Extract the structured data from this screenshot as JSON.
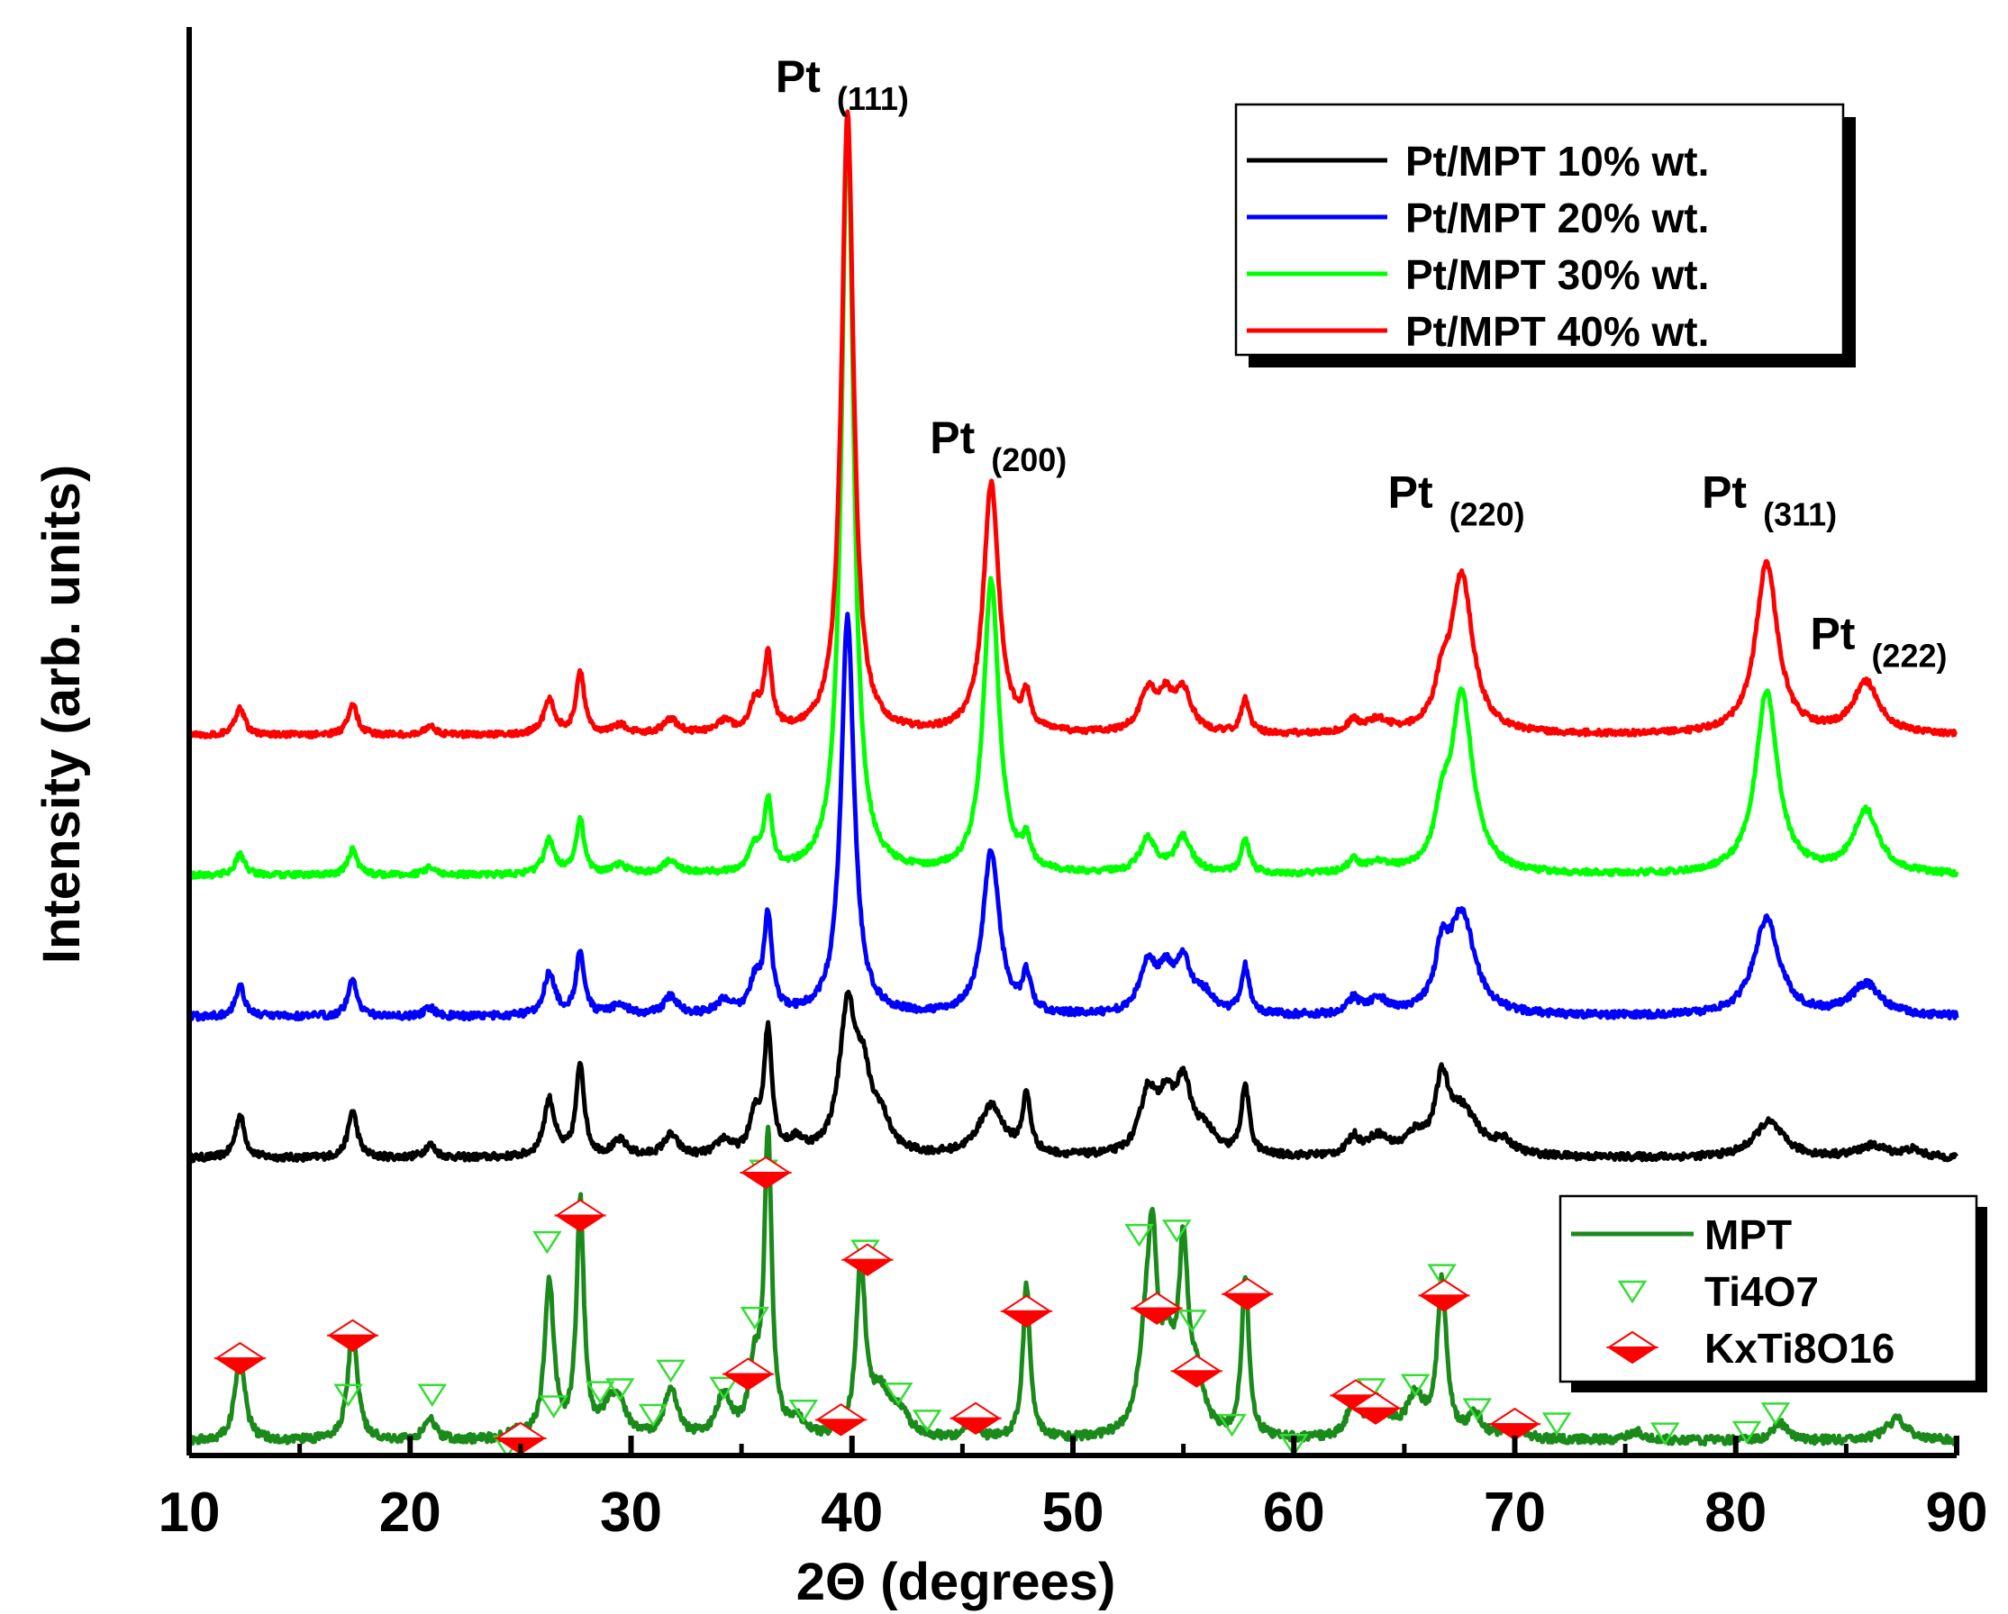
{
  "chart_data": {
    "type": "line",
    "title": "",
    "xlabel": "2Θ (degrees)",
    "ylabel": "Intensity (arb. units)",
    "xlim": [
      10,
      90
    ],
    "ylim": [
      0,
      100
    ],
    "x_ticks": [
      10,
      20,
      30,
      40,
      50,
      60,
      70,
      80,
      90
    ],
    "y_ticks_shown": false,
    "series": [
      {
        "name": "Pt/MPT 10% wt.",
        "color": "#000000",
        "baseline": 20.8,
        "noise": 0.25,
        "peaks": [
          [
            12.3,
            3.0,
            0.25
          ],
          [
            17.4,
            3.3,
            0.25
          ],
          [
            20.9,
            0.9,
            0.3
          ],
          [
            26.3,
            4.0,
            0.3
          ],
          [
            27.7,
            6.5,
            0.22
          ],
          [
            29.5,
            1.1,
            0.4
          ],
          [
            31.8,
            1.5,
            0.4
          ],
          [
            34.2,
            1.1,
            0.4
          ],
          [
            35.6,
            2.5,
            0.3
          ],
          [
            36.2,
            8.5,
            0.22
          ],
          [
            37.5,
            0.9,
            0.4
          ],
          [
            39.8,
            10.0,
            0.45
          ],
          [
            40.5,
            4.5,
            0.4
          ],
          [
            41.3,
            2.2,
            0.5
          ],
          [
            46.3,
            3.5,
            0.7
          ],
          [
            47.9,
            4.0,
            0.22
          ],
          [
            53.4,
            4.2,
            0.45
          ],
          [
            54.2,
            3.2,
            0.4
          ],
          [
            55.0,
            4.8,
            0.45
          ],
          [
            56.0,
            1.5,
            0.5
          ],
          [
            57.8,
            4.8,
            0.22
          ],
          [
            62.7,
            1.2,
            0.3
          ],
          [
            63.8,
            1.3,
            0.6
          ],
          [
            65.5,
            1.2,
            0.5
          ],
          [
            66.7,
            4.5,
            0.35
          ],
          [
            67.6,
            3.2,
            0.9
          ],
          [
            69.5,
            0.8,
            0.5
          ],
          [
            81.5,
            2.5,
            0.8
          ],
          [
            86.2,
            0.8,
            0.8
          ],
          [
            88.0,
            0.5,
            0.5
          ]
        ]
      },
      {
        "name": "Pt/MPT 20% wt.",
        "color": "#0000ff",
        "baseline": 30.7,
        "noise": 0.25,
        "peaks": [
          [
            12.3,
            2.2,
            0.25
          ],
          [
            17.4,
            2.6,
            0.25
          ],
          [
            20.9,
            0.6,
            0.3
          ],
          [
            26.3,
            3.0,
            0.3
          ],
          [
            27.7,
            4.6,
            0.22
          ],
          [
            29.5,
            0.8,
            0.4
          ],
          [
            31.8,
            1.3,
            0.4
          ],
          [
            34.2,
            1.0,
            0.4
          ],
          [
            35.6,
            2.2,
            0.3
          ],
          [
            36.2,
            6.8,
            0.22
          ],
          [
            39.8,
            28.0,
            0.35
          ],
          [
            46.3,
            11.5,
            0.45
          ],
          [
            47.9,
            2.5,
            0.22
          ],
          [
            53.4,
            3.4,
            0.45
          ],
          [
            54.2,
            2.4,
            0.4
          ],
          [
            55.0,
            3.4,
            0.45
          ],
          [
            56.0,
            1.2,
            0.5
          ],
          [
            57.8,
            3.3,
            0.22
          ],
          [
            62.7,
            1.0,
            0.3
          ],
          [
            63.8,
            1.0,
            0.6
          ],
          [
            66.7,
            3.5,
            0.35
          ],
          [
            67.6,
            7.0,
            0.7
          ],
          [
            81.4,
            6.8,
            0.7
          ],
          [
            85.9,
            2.2,
            0.8
          ]
        ]
      },
      {
        "name": "Pt/MPT 30% wt.",
        "color": "#00ff00",
        "baseline": 40.6,
        "noise": 0.2,
        "peaks": [
          [
            12.3,
            1.5,
            0.25
          ],
          [
            17.4,
            1.8,
            0.25
          ],
          [
            20.9,
            0.5,
            0.3
          ],
          [
            26.3,
            2.4,
            0.3
          ],
          [
            27.7,
            3.8,
            0.22
          ],
          [
            29.5,
            0.6,
            0.4
          ],
          [
            31.8,
            1.0,
            0.4
          ],
          [
            35.6,
            1.6,
            0.3
          ],
          [
            36.2,
            4.8,
            0.22
          ],
          [
            39.8,
            53.0,
            0.33
          ],
          [
            46.3,
            20.5,
            0.42
          ],
          [
            47.9,
            1.8,
            0.22
          ],
          [
            53.4,
            2.4,
            0.45
          ],
          [
            55.0,
            2.5,
            0.45
          ],
          [
            57.8,
            2.4,
            0.22
          ],
          [
            62.7,
            0.8,
            0.3
          ],
          [
            63.8,
            0.7,
            0.6
          ],
          [
            66.7,
            3.0,
            0.35
          ],
          [
            67.6,
            12.5,
            0.6
          ],
          [
            81.4,
            12.8,
            0.6
          ],
          [
            85.9,
            4.4,
            0.7
          ]
        ]
      },
      {
        "name": "Pt/MPT 40% wt.",
        "color": "#ff0000",
        "baseline": 50.4,
        "noise": 0.2,
        "peaks": [
          [
            12.3,
            2.0,
            0.25
          ],
          [
            17.4,
            2.2,
            0.25
          ],
          [
            20.9,
            0.6,
            0.3
          ],
          [
            26.3,
            2.4,
            0.3
          ],
          [
            27.7,
            4.4,
            0.22
          ],
          [
            29.5,
            0.6,
            0.4
          ],
          [
            31.8,
            1.0,
            0.4
          ],
          [
            34.2,
            0.8,
            0.4
          ],
          [
            35.6,
            1.9,
            0.3
          ],
          [
            36.2,
            5.2,
            0.22
          ],
          [
            39.8,
            43.5,
            0.33
          ],
          [
            46.3,
            17.5,
            0.42
          ],
          [
            47.9,
            2.2,
            0.22
          ],
          [
            53.4,
            2.8,
            0.45
          ],
          [
            54.2,
            2.2,
            0.4
          ],
          [
            55.0,
            2.8,
            0.45
          ],
          [
            57.8,
            2.4,
            0.22
          ],
          [
            62.7,
            0.8,
            0.3
          ],
          [
            63.8,
            0.9,
            0.6
          ],
          [
            66.7,
            2.5,
            0.35
          ],
          [
            67.6,
            11.0,
            0.6
          ],
          [
            81.4,
            12.0,
            0.6
          ],
          [
            85.9,
            3.6,
            0.7
          ]
        ]
      },
      {
        "name": "MPT",
        "color": "#1a8a1a",
        "baseline": 1.0,
        "noise": 0.3,
        "peaks": [
          [
            12.3,
            6.5,
            0.25
          ],
          [
            17.4,
            8.0,
            0.25
          ],
          [
            20.9,
            1.5,
            0.3
          ],
          [
            24.8,
            0.4,
            0.4
          ],
          [
            26.3,
            11.0,
            0.25
          ],
          [
            27.7,
            16.5,
            0.2
          ],
          [
            29.0,
            1.8,
            0.4
          ],
          [
            29.5,
            2.0,
            0.4
          ],
          [
            31.8,
            3.5,
            0.35
          ],
          [
            34.2,
            3.0,
            0.4
          ],
          [
            35.6,
            4.5,
            0.3
          ],
          [
            36.2,
            21.0,
            0.2
          ],
          [
            37.5,
            1.2,
            0.4
          ],
          [
            40.4,
            12.0,
            0.25
          ],
          [
            41.3,
            3.0,
            0.5
          ],
          [
            42.2,
            1.5,
            0.5
          ],
          [
            45.4,
            1.2,
            0.3
          ],
          [
            47.9,
            10.8,
            0.2
          ],
          [
            53.3,
            5.5,
            0.4
          ],
          [
            53.6,
            11.0,
            0.25
          ],
          [
            54.3,
            5.0,
            0.4
          ],
          [
            55.0,
            12.0,
            0.25
          ],
          [
            55.6,
            3.5,
            0.4
          ],
          [
            57.8,
            11.2,
            0.2
          ],
          [
            62.7,
            2.6,
            0.3
          ],
          [
            63.8,
            2.5,
            0.5
          ],
          [
            65.5,
            2.8,
            0.5
          ],
          [
            66.7,
            10.8,
            0.25
          ],
          [
            68.2,
            1.5,
            0.4
          ],
          [
            70.0,
            1.2,
            0.4
          ],
          [
            75.5,
            0.6,
            0.5
          ],
          [
            82.0,
            1.2,
            0.4
          ],
          [
            87.3,
            1.5,
            0.6
          ]
        ]
      }
    ],
    "ti4o7_markers": [
      [
        17.2,
        4.3
      ],
      [
        21.0,
        4.3
      ],
      [
        24.4,
        0.7
      ],
      [
        26.2,
        15.0
      ],
      [
        26.5,
        3.5
      ],
      [
        28.6,
        4.5
      ],
      [
        29.5,
        4.7
      ],
      [
        31.0,
        2.9
      ],
      [
        31.8,
        6.0
      ],
      [
        34.2,
        4.8
      ],
      [
        35.6,
        9.7
      ],
      [
        36.0,
        20.0
      ],
      [
        37.8,
        3.2
      ],
      [
        40.6,
        14.4
      ],
      [
        42.1,
        4.4
      ],
      [
        43.4,
        2.5
      ],
      [
        53.0,
        15.5
      ],
      [
        54.7,
        15.8
      ],
      [
        55.4,
        9.5
      ],
      [
        57.2,
        2.2
      ],
      [
        60.0,
        0.8
      ],
      [
        63.5,
        4.7
      ],
      [
        65.5,
        5.0
      ],
      [
        66.7,
        12.7
      ],
      [
        68.3,
        3.3
      ],
      [
        71.9,
        2.3
      ],
      [
        76.8,
        1.6
      ],
      [
        80.5,
        1.7
      ],
      [
        81.8,
        3.0
      ]
    ],
    "kxti8o16_markers": [
      [
        12.3,
        6.8
      ],
      [
        17.4,
        8.4
      ],
      [
        25.0,
        1.2
      ],
      [
        27.7,
        16.8
      ],
      [
        35.3,
        5.7
      ],
      [
        36.1,
        19.8
      ],
      [
        39.5,
        2.5
      ],
      [
        40.7,
        13.7
      ],
      [
        45.6,
        2.6
      ],
      [
        47.9,
        10.1
      ],
      [
        53.8,
        10.3
      ],
      [
        55.6,
        5.9
      ],
      [
        57.9,
        11.3
      ],
      [
        62.8,
        4.2
      ],
      [
        63.7,
        3.3
      ],
      [
        66.8,
        11.2
      ],
      [
        70.0,
        2.2
      ]
    ],
    "peak_labels": [
      {
        "x": 39.8,
        "base": "Pt",
        "sub": "(111)"
      },
      {
        "x": 46.3,
        "base": "Pt",
        "sub": "(200)"
      },
      {
        "x": 67.6,
        "base": "Pt",
        "sub": "(220)"
      },
      {
        "x": 81.4,
        "base": "Pt",
        "sub": "(311)"
      },
      {
        "x": 85.9,
        "base": "Pt",
        "sub": "(222)"
      }
    ],
    "legend_top": {
      "placement": "top-right",
      "items": [
        {
          "label": "Pt/MPT 10% wt.",
          "color": "#000000"
        },
        {
          "label": "Pt/MPT 20% wt.",
          "color": "#0000ff"
        },
        {
          "label": "Pt/MPT 30% wt.",
          "color": "#00ff00"
        },
        {
          "label": "Pt/MPT 40% wt.",
          "color": "#ff0000"
        }
      ]
    },
    "legend_bottom": {
      "placement": "bottom-right",
      "items": [
        {
          "label": "MPT",
          "kind": "line",
          "color": "#1a8a1a"
        },
        {
          "label": "Ti4O7",
          "kind": "triangle",
          "color": "#33dd33"
        },
        {
          "label": "KxTi8O16",
          "kind": "diamond",
          "color": "#ff0000"
        }
      ]
    }
  }
}
